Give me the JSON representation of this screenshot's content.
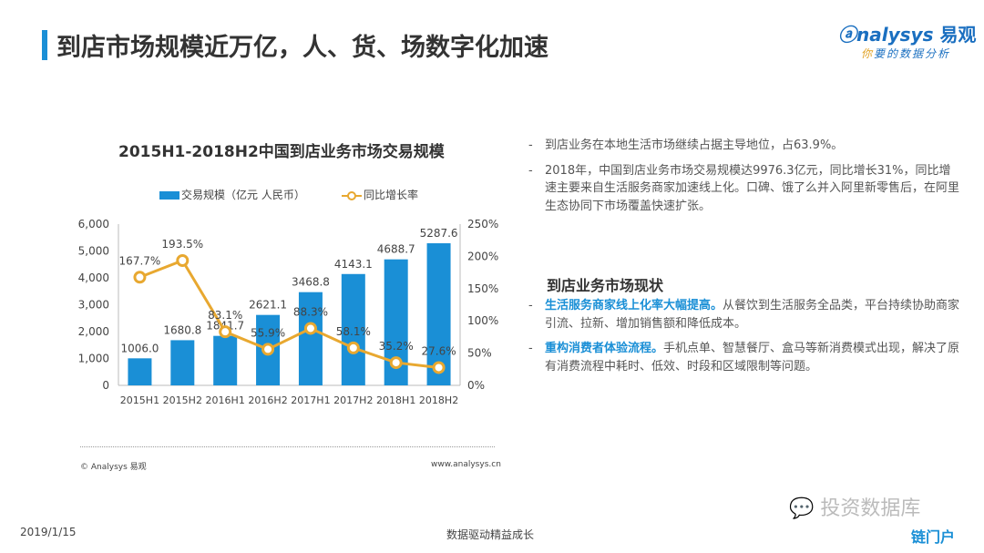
{
  "header": {
    "title": "到店市场规模近万亿，人、货、场数字化加速",
    "logo_text": "nalysys",
    "logo_cn": "易观",
    "tagline_first": "你",
    "tagline_rest": "要的数据分析"
  },
  "chart_data": {
    "type": "bar",
    "title": "2015H1-2018H2中国到店业务市场交易规模",
    "categories": [
      "2015H1",
      "2015H2",
      "2016H1",
      "2016H2",
      "2017H1",
      "2017H2",
      "2018H1",
      "2018H2"
    ],
    "series": [
      {
        "name": "交易规模（亿元 人民币）",
        "type": "bar",
        "axis": "left",
        "values": [
          1006.0,
          1680.8,
          1841.7,
          2621.1,
          3468.8,
          4143.1,
          4688.7,
          5287.6
        ],
        "labels": [
          "1006.0",
          "1680.8",
          "1841.7",
          "2621.1",
          "3468.8",
          "4143.1",
          "4688.7",
          "5287.6"
        ],
        "color": "#1a8fd6"
      },
      {
        "name": "同比增长率",
        "type": "line",
        "axis": "right",
        "values": [
          167.7,
          193.5,
          83.1,
          55.9,
          88.3,
          58.1,
          35.2,
          27.6
        ],
        "labels": [
          "167.7%",
          "193.5%",
          "83.1%",
          "55.9%",
          "88.3%",
          "58.1%",
          "35.2%",
          "27.6%"
        ],
        "color": "#e8a830"
      }
    ],
    "ylim_left": [
      0,
      6000
    ],
    "yticks_left": [
      "0",
      "1,000",
      "2,000",
      "3,000",
      "4,000",
      "5,000",
      "6,000"
    ],
    "ylim_right": [
      0,
      250
    ],
    "yticks_right": [
      "0%",
      "50%",
      "100%",
      "150%",
      "200%",
      "250%"
    ],
    "legend": "top",
    "grid": false
  },
  "chart_footer": {
    "source": "© Analysys 易观",
    "url": "www.analysys.cn"
  },
  "bullets": [
    "到店业务在本地生活市场继续占据主导地位，占63.9%。",
    "2018年，中国到店业务市场交易规模达9976.3亿元，同比增长31%，同比增速主要来自生活服务商家加速线上化。口碑、饿了么并入阿里新零售后，在阿里生态协同下市场覆盖快速扩张。"
  ],
  "status": {
    "heading": "到店业务市场现状",
    "items": [
      {
        "highlight": "生活服务商家线上化率大幅提高。",
        "text": "从餐饮到生活服务全品类，平台持续协助商家引流、拉新、增加销售额和降低成本。"
      },
      {
        "highlight": "重构消费者体验流程。",
        "text": "手机点单、智慧餐厅、盒马等新消费模式出现，解决了原有消费流程中耗时、低效、时段和区域限制等问题。"
      }
    ]
  },
  "footer": {
    "date": "2019/1/15",
    "slogan": "数据驱动精益成长",
    "watermark": "投资数据库",
    "watermark2": "链门户"
  }
}
